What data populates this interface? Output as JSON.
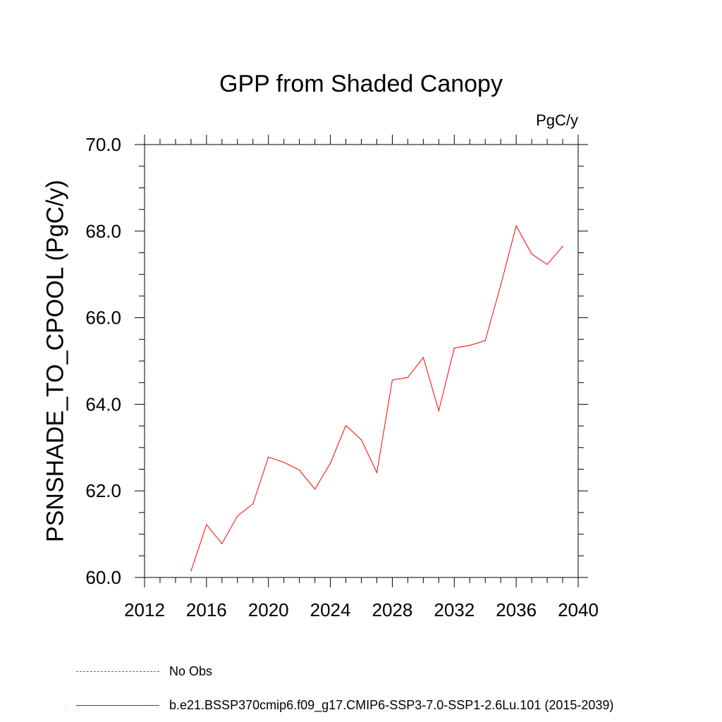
{
  "chart_data": {
    "type": "line",
    "title": "GPP from Shaded Canopy",
    "units_label": "PgC/y",
    "ylabel": "PSNSHADE_TO_CPOOL  (PgC/y)",
    "xlabel": "",
    "xlim": [
      2012,
      2040
    ],
    "ylim": [
      60,
      70
    ],
    "x_ticks": [
      2012,
      2016,
      2020,
      2024,
      2028,
      2032,
      2036,
      2040
    ],
    "x_tick_labels": [
      "2012",
      "2016",
      "2020",
      "2024",
      "2028",
      "2032",
      "2036",
      "2040"
    ],
    "y_ticks": [
      60,
      62,
      64,
      66,
      68,
      70
    ],
    "y_tick_labels": [
      "60.0",
      "62.0",
      "64.0",
      "66.0",
      "68.0",
      "70.0"
    ],
    "series": [
      {
        "name": "b.e21.BSSP370cmip6.f09_g17.CMIP6-SSP3-7.0-SSP1-2.6Lu.101 (2015-2039)",
        "color": "#ff0000",
        "x": [
          2015,
          2016,
          2017,
          2018,
          2019,
          2020,
          2021,
          2022,
          2023,
          2024,
          2025,
          2026,
          2027,
          2028,
          2029,
          2030,
          2031,
          2032,
          2033,
          2034,
          2035,
          2036,
          2037,
          2038,
          2039
        ],
        "values": [
          60.15,
          61.22,
          60.78,
          61.42,
          61.7,
          62.78,
          62.66,
          62.48,
          62.04,
          62.64,
          63.51,
          63.18,
          62.42,
          64.56,
          64.62,
          65.08,
          63.85,
          65.3,
          65.36,
          65.47,
          66.75,
          68.12,
          67.47,
          67.23,
          67.65
        ]
      }
    ],
    "legend": [
      {
        "label": "No Obs",
        "style": "dashed",
        "color": "#6a5acd"
      },
      {
        "label": "b.e21.BSSP370cmip6.f09_g17.CMIP6-SSP3-7.0-SSP1-2.6Lu.101 (2015-2039)",
        "style": "solid",
        "color": "#ff0000"
      }
    ]
  }
}
